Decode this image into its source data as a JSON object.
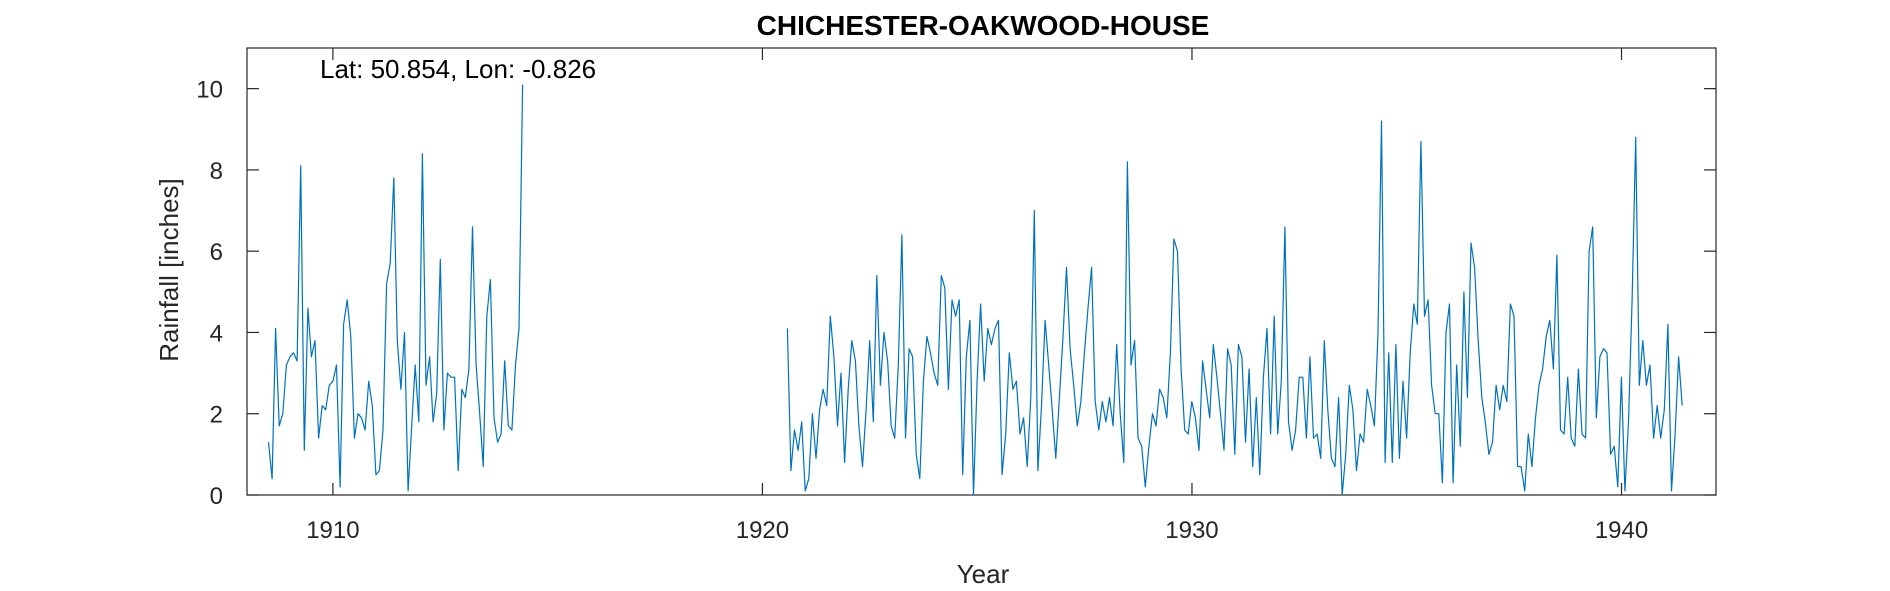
{
  "chart_data": {
    "type": "line",
    "title": "CHICHESTER-OAKWOOD-HOUSE",
    "xlabel": "Year",
    "ylabel": "Rainfall [inches]",
    "annotation": "Lat: 50.854, Lon: -0.826",
    "xlim": [
      1908.0,
      1942.2
    ],
    "ylim": [
      0,
      11
    ],
    "xticks": [
      1910,
      1920,
      1930,
      1940
    ],
    "yticks": [
      0,
      2,
      4,
      6,
      8,
      10
    ],
    "grid": false,
    "line_color": "#0072BD",
    "series": [
      {
        "start_year": 1908.5,
        "values": [
          1.3,
          0.4,
          4.1,
          1.7,
          2.0,
          3.2,
          3.4,
          3.5,
          3.3,
          8.1,
          1.1,
          4.6,
          3.4,
          3.8,
          1.4,
          2.2,
          2.1,
          2.7,
          2.8,
          3.2,
          0.2,
          4.2,
          4.8,
          3.9,
          1.4,
          2.0,
          1.9,
          1.6,
          2.8,
          2.2,
          0.5,
          0.6,
          1.6,
          5.2,
          5.7,
          7.8,
          3.8,
          2.6,
          4.0,
          0.1,
          1.7,
          3.2,
          1.8,
          8.4,
          2.7,
          3.4,
          1.8,
          2.5,
          5.8,
          1.6,
          3.0,
          2.9,
          2.9,
          0.6,
          2.6,
          2.4,
          3.1,
          6.6,
          3.2,
          2.0,
          0.7,
          4.4,
          5.3,
          1.9,
          1.3,
          1.5,
          3.3,
          1.7,
          1.6,
          3.2,
          4.1,
          10.1
        ]
      },
      {
        "start_year": 1920.58,
        "values": [
          4.1,
          0.6,
          1.6,
          1.1,
          1.8,
          0.1,
          0.4,
          2.0,
          0.9,
          2.1,
          2.6,
          2.2,
          4.4,
          3.4,
          1.7,
          3.0,
          0.8,
          2.6,
          3.8,
          3.3,
          1.7,
          0.7,
          2.1,
          3.8,
          1.8,
          5.4,
          2.7,
          4.0,
          3.3,
          1.7,
          1.4,
          3.2,
          6.4,
          1.4,
          3.6,
          3.4,
          1.0,
          0.4,
          2.8,
          3.9,
          3.5,
          3.0,
          2.7,
          5.4,
          5.1,
          2.6,
          4.8,
          4.4,
          4.8,
          0.5,
          3.4,
          4.3,
          0.0,
          2.8,
          4.7,
          2.8,
          4.1,
          3.7,
          4.1,
          4.3,
          0.5,
          1.5,
          3.5,
          2.6,
          2.8,
          1.5,
          1.9,
          0.7,
          2.4,
          7.0,
          0.6,
          2.2,
          4.3,
          3.2,
          2.1,
          0.9,
          2.4,
          3.9,
          5.6,
          3.6,
          2.7,
          1.7,
          2.3,
          3.5,
          4.6,
          5.6,
          2.3,
          1.6,
          2.3,
          1.8,
          2.4,
          1.7,
          3.7,
          2.0,
          0.8,
          8.2,
          3.2,
          3.8,
          1.4,
          1.2,
          0.2,
          1.2,
          2.0,
          1.7,
          2.6,
          2.4,
          1.9,
          3.5,
          6.3,
          6.0,
          3.1,
          1.6,
          1.5,
          2.3,
          1.9,
          1.1,
          3.3,
          2.6,
          1.9,
          3.7,
          2.9,
          2.0,
          1.1,
          3.6,
          3.2,
          1.0,
          3.7,
          3.4,
          1.3,
          3.1,
          0.7,
          2.4,
          0.5,
          2.9,
          4.1,
          1.5,
          4.4,
          1.5,
          2.8,
          6.6,
          1.8,
          1.1,
          1.6,
          2.9,
          2.9,
          1.4,
          3.4,
          1.4,
          1.5,
          0.9,
          3.8,
          2.1,
          0.9,
          0.7,
          2.4,
          0.0,
          1.0,
          2.7,
          2.1,
          0.6,
          1.5,
          1.3,
          2.6,
          2.2,
          1.7,
          4.0,
          9.2,
          0.8,
          3.5,
          0.8,
          3.7,
          0.9,
          2.8,
          1.4,
          3.5,
          4.7,
          4.2,
          8.7,
          4.4,
          4.8,
          2.7,
          2.0,
          2.0,
          0.3,
          4.0,
          4.7,
          0.3,
          3.2,
          1.2,
          5.0,
          2.4,
          6.2,
          5.6,
          3.8,
          2.4,
          1.8,
          1.0,
          1.3,
          2.7,
          2.1,
          2.7,
          2.3,
          4.7,
          4.4,
          0.7,
          0.7,
          0.1,
          1.5,
          0.7,
          1.9,
          2.7,
          3.1,
          3.9,
          4.3,
          3.1,
          5.9,
          1.6,
          1.5,
          2.9,
          1.4,
          1.2,
          3.1,
          1.5,
          1.4,
          6.0,
          6.6,
          1.9,
          3.4,
          3.6,
          3.5,
          1.0,
          1.2,
          0.2,
          2.9,
          0.1,
          1.8,
          4.8,
          8.8,
          2.7,
          3.8,
          2.7,
          3.2,
          1.4,
          2.2,
          1.4,
          2.1,
          4.2,
          0.1,
          1.5,
          3.4,
          2.2
        ]
      }
    ]
  }
}
